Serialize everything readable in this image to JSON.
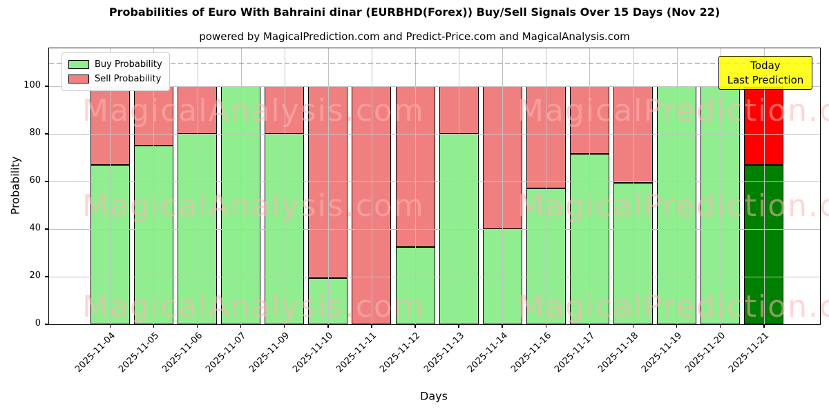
{
  "header": {
    "title": "Probabilities of Euro With Bahraini dinar (EURBHD(Forex)) Buy/Sell Signals Over 15 Days (Nov 22)",
    "subtitle": "powered by MagicalPrediction.com and Predict-Price.com and MagicalAnalysis.com"
  },
  "chart_data": {
    "type": "bar",
    "stacked": true,
    "title": "Probabilities of Euro With Bahraini dinar (EURBHD(Forex)) Buy/Sell Signals Over 15 Days (Nov 22)",
    "xlabel": "Days",
    "ylabel": "Probability",
    "categories": [
      "2025-11-04",
      "2025-11-05",
      "2025-11-06",
      "2025-11-07",
      "2025-11-09",
      "2025-11-10",
      "2025-11-11",
      "2025-11-12",
      "2025-11-13",
      "2025-11-14",
      "2025-11-16",
      "2025-11-17",
      "2025-11-18",
      "2025-11-19",
      "2025-11-20",
      "2025-11-21"
    ],
    "series": [
      {
        "name": "Buy Probability",
        "values": [
          67,
          75,
          80,
          100,
          80,
          19.5,
          0,
          32.5,
          80,
          40,
          57,
          71.5,
          59.5,
          100,
          100,
          67
        ],
        "color": "#90ee90",
        "last_bar_color": "#008000"
      },
      {
        "name": "Sell Probability",
        "values": [
          33,
          25,
          20,
          0,
          20,
          80.5,
          100,
          67.5,
          20,
          60,
          43,
          28.5,
          40.5,
          0,
          0,
          33
        ],
        "color": "#f08080",
        "last_bar_color": "#ff0000"
      }
    ],
    "yticks": [
      0,
      20,
      40,
      60,
      80,
      100
    ],
    "ylim": [
      0,
      116
    ],
    "grid": true,
    "threshold_line": {
      "value": 110,
      "style": "dashed",
      "color": "#7f7f7f"
    },
    "legend": {
      "position": "upper-left"
    },
    "annotation": {
      "lines": [
        "Today",
        "Last Prediction"
      ],
      "bg_color": "#ffff00"
    },
    "watermarks": [
      "MagicalAnalysis.com",
      "MagicalPrediction.com"
    ],
    "bar_edge_color": "#000000"
  }
}
